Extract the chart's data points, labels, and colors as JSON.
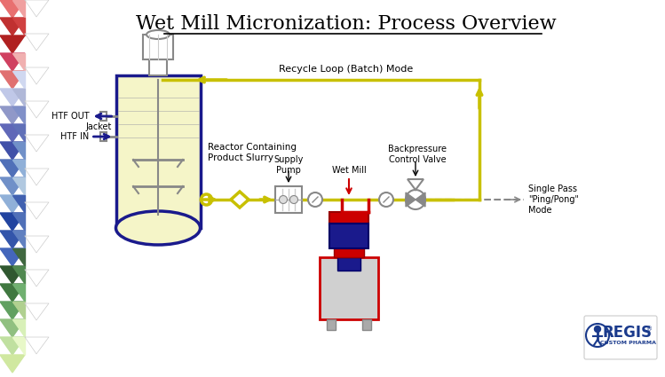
{
  "title": "Wet Mill Micronization: Process Overview",
  "bg_color": "#ffffff",
  "title_fontsize": 16,
  "recycle_label": "Recycle Loop (Batch) Mode",
  "single_pass_label": "Single Pass\n\"Ping/Pong\"\nMode",
  "reactor_label": "Reactor Containing\nProduct Slurry",
  "jacket_label": "Jacket",
  "htf_out_label": "HTF OUT",
  "htf_in_label": "HTF IN",
  "supply_pump_label": "Supply\nPump",
  "wet_mill_label": "Wet Mill",
  "backpressure_label": "Backpressure\nControl Valve",
  "process_line_color": "#c8c000",
  "reactor_outline_color": "#1a1a8c",
  "reactor_fill_color": "#f5f5c8",
  "red_line_color": "#cc0000",
  "dashed_line_color": "#888888",
  "htf_color": "#1a1a8c",
  "regis_color": "#1a3a8c"
}
